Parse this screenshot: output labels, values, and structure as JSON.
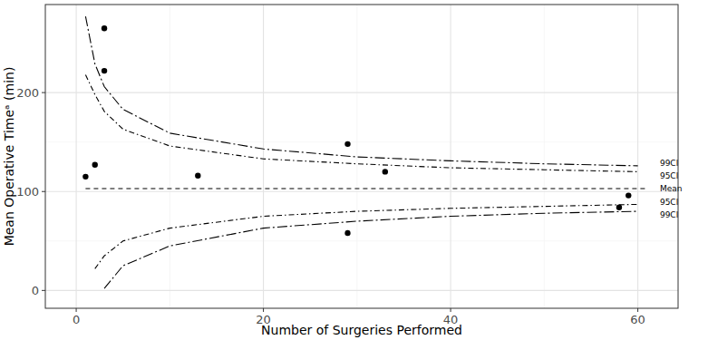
{
  "chart_data": {
    "type": "scatter",
    "x_label": "Number of Surgeries Performed",
    "y_label": "Mean Operative Timeᵃ (min)",
    "xlim": [
      -3.3,
      64.3
    ],
    "ylim": [
      -18,
      289
    ],
    "xticks": [
      0,
      20,
      40,
      60
    ],
    "yticks": [
      0,
      100,
      200
    ],
    "grid": true,
    "series": [
      {
        "name": "99CI",
        "type": "line",
        "line_style": "longdashdot",
        "color": "#000000",
        "x": [
          1,
          2,
          3,
          5,
          10,
          20,
          30,
          40,
          50,
          60
        ],
        "values": [
          277,
          229,
          206,
          183,
          159,
          143,
          135,
          131,
          128,
          126
        ]
      },
      {
        "name": "95CI",
        "type": "line",
        "line_style": "dashdot",
        "color": "#000000",
        "x": [
          1,
          2,
          3,
          5,
          10,
          20,
          30,
          40,
          50,
          60
        ],
        "values": [
          218,
          198,
          181,
          163,
          146,
          133,
          128,
          124,
          122,
          120
        ]
      },
      {
        "name": "Mean",
        "type": "line",
        "line_style": "dashed",
        "color": "#000000",
        "x": [
          1,
          61
        ],
        "values": [
          103,
          103
        ]
      },
      {
        "name": "95CI",
        "type": "line",
        "line_style": "dashdot",
        "color": "#000000",
        "x": [
          2,
          3,
          5,
          10,
          20,
          30,
          40,
          50,
          60
        ],
        "values": [
          22,
          35,
          50,
          63,
          75,
          80,
          83,
          85,
          87
        ]
      },
      {
        "name": "99CI",
        "type": "line",
        "line_style": "longdashdot",
        "color": "#000000",
        "x": [
          3,
          5,
          10,
          20,
          30,
          40,
          50,
          60
        ],
        "values": [
          2,
          25,
          45,
          63,
          70,
          75,
          78,
          80
        ]
      }
    ],
    "points": {
      "type": "scatter",
      "marker": "circle",
      "color": "#000000",
      "x": [
        1,
        2,
        3,
        3,
        13,
        29,
        29,
        33,
        58,
        59
      ],
      "values": [
        115,
        127,
        265,
        222,
        116,
        148,
        58,
        120,
        84,
        96
      ]
    }
  }
}
